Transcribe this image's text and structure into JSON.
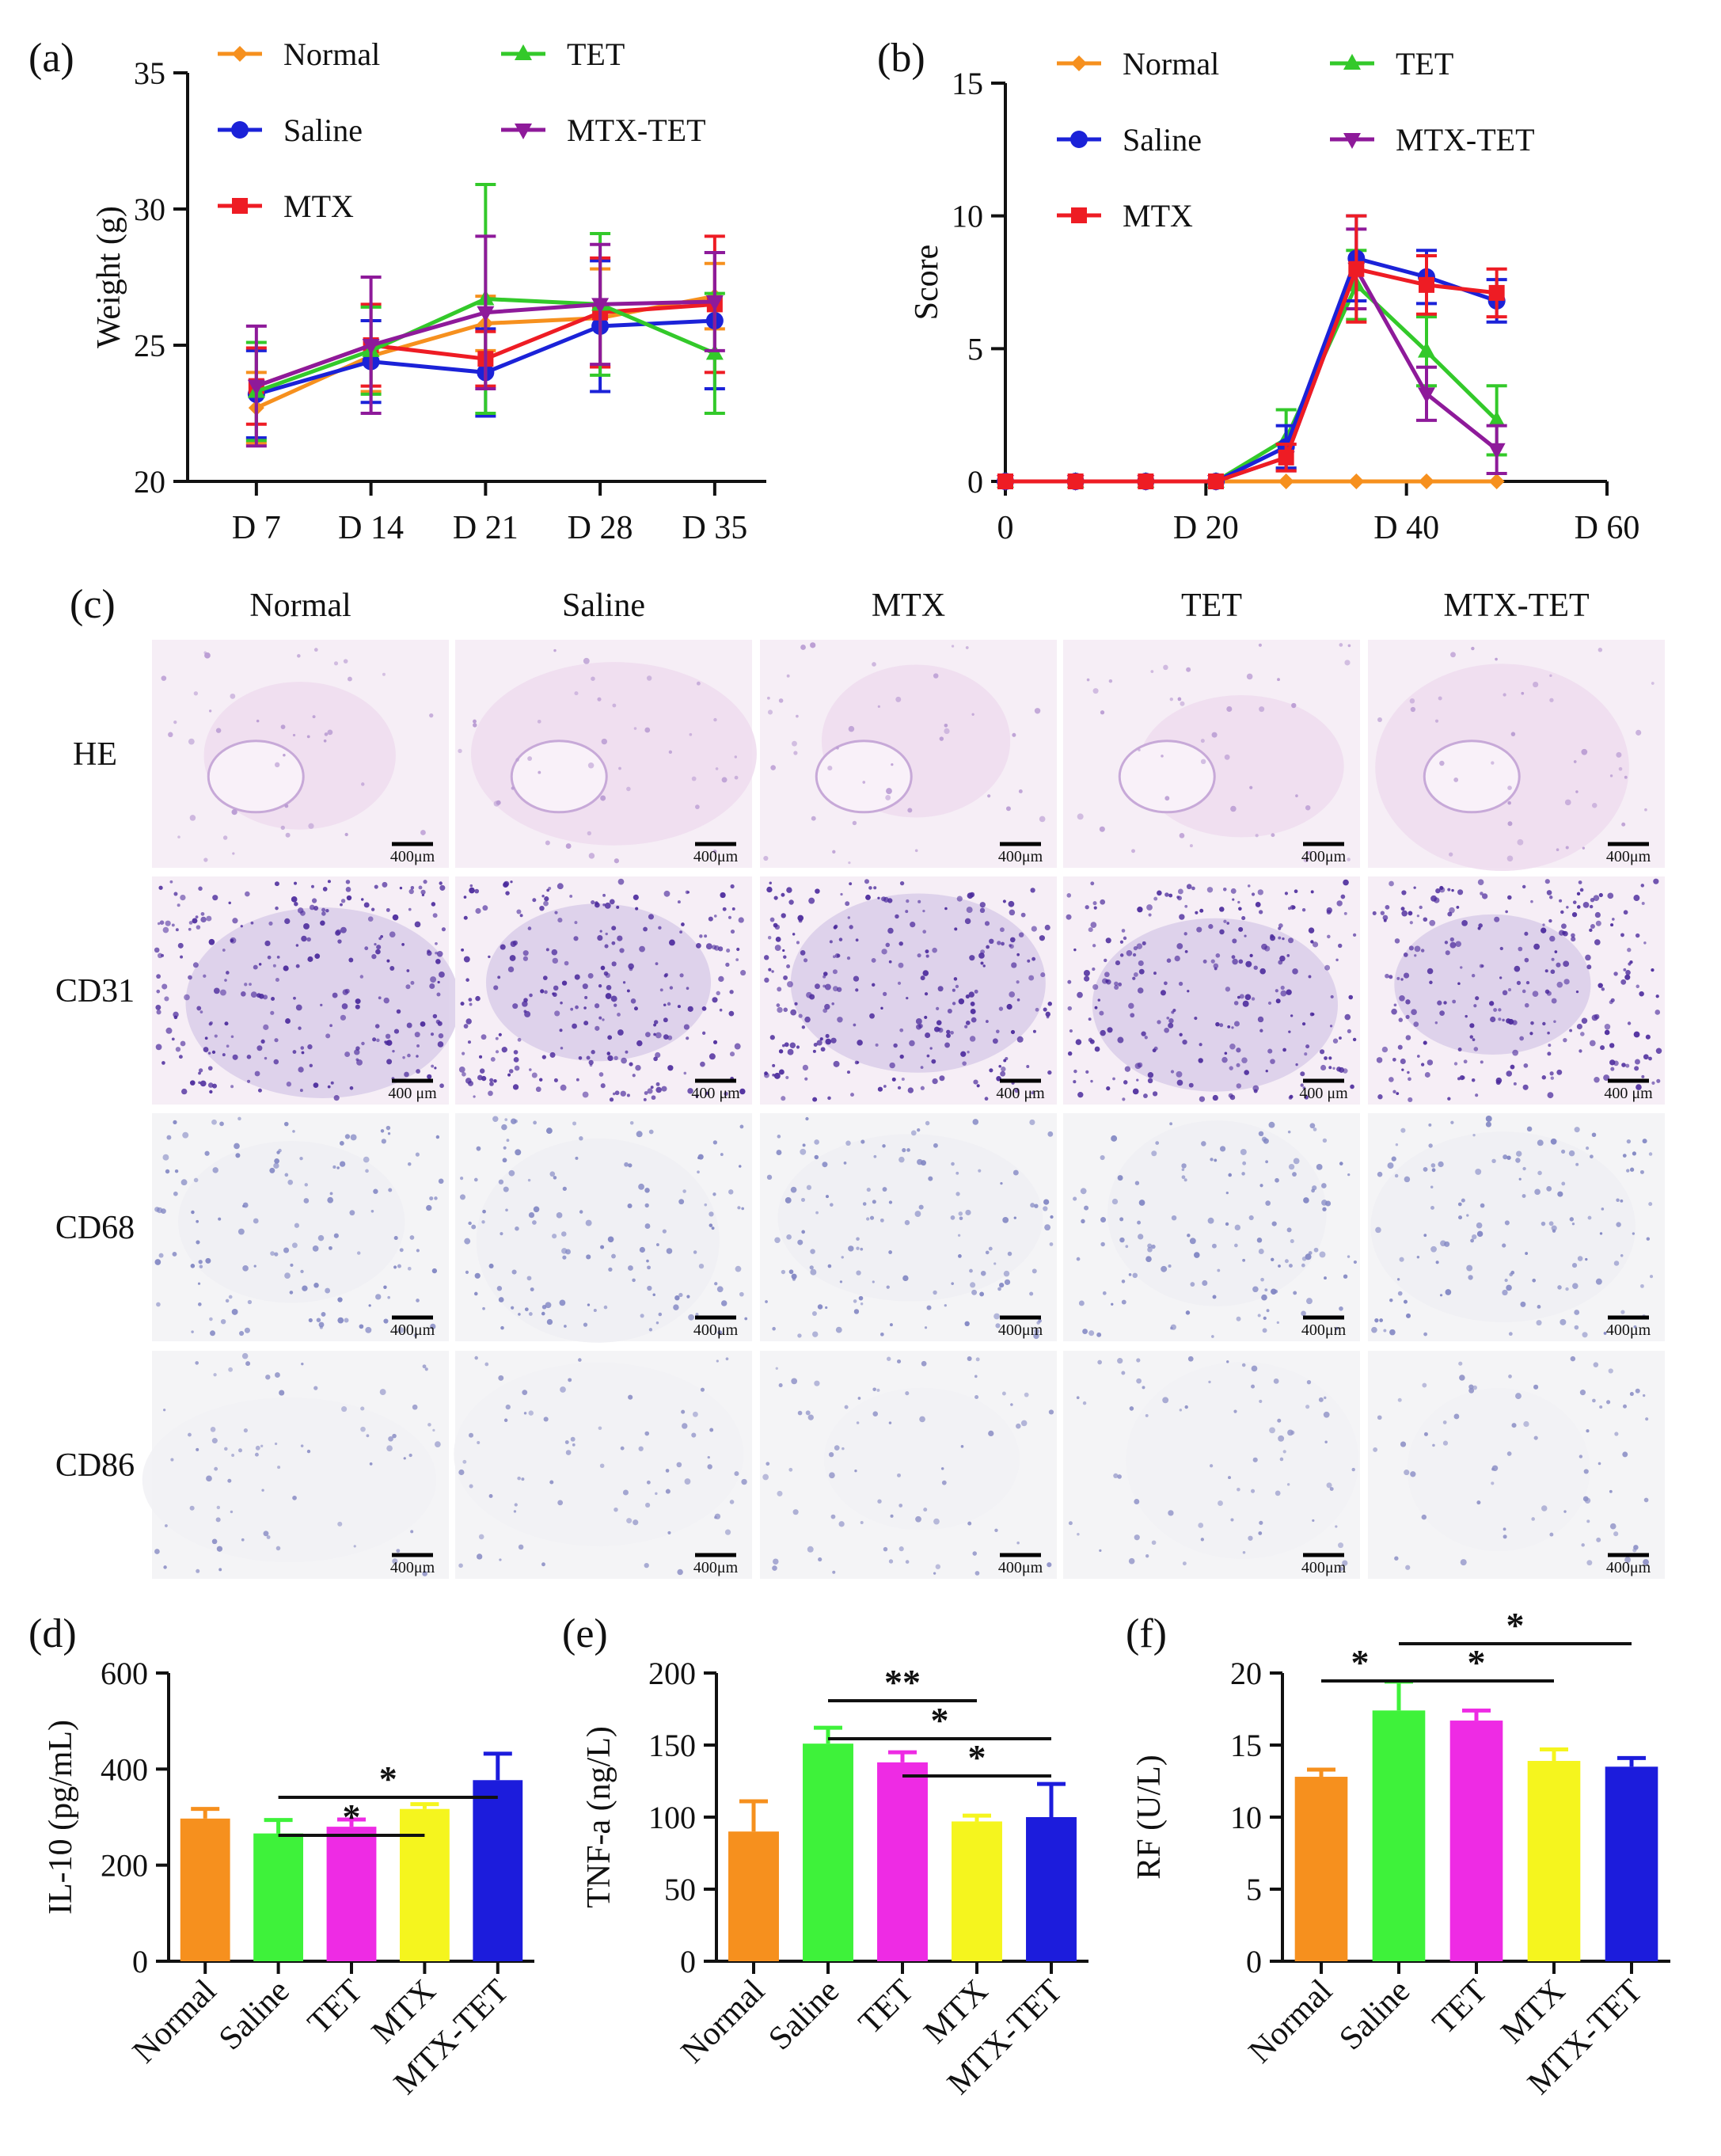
{
  "colors": {
    "Normal": "#f6901e",
    "Saline": "#1b22d8",
    "MTX": "#ee1c24",
    "TET": "#33c92a",
    "MTX-TET": "#8e1a9a",
    "TET_bar": "#ee2be4",
    "MTX_bar": "#f5f51e",
    "MTX-TET_bar": "#1c1cdc",
    "Saline_bar": "#3ef23a"
  },
  "panel_labels": {
    "a": "(a)",
    "b": "(b)",
    "c": "(c)",
    "d": "(d)",
    "e": "(e)",
    "f": "(f)"
  },
  "chart_data": [
    {
      "id": "a",
      "type": "line",
      "title": "",
      "xlabel": "",
      "ylabel": "Weight (g)",
      "categories": [
        "D 7",
        "D 14",
        "D 21",
        "D 28",
        "D 35"
      ],
      "ylim": [
        20,
        35
      ],
      "yticks": [
        20,
        25,
        30,
        35
      ],
      "legend": [
        "Normal",
        "TET",
        "Saline",
        "MTX-TET",
        "MTX"
      ],
      "series": [
        {
          "name": "Normal",
          "values": [
            22.7,
            24.6,
            25.8,
            26.0,
            26.8
          ],
          "err": [
            1.3,
            1.3,
            1.0,
            1.8,
            1.2
          ]
        },
        {
          "name": "Saline",
          "values": [
            23.2,
            24.4,
            24.0,
            25.7,
            25.9
          ],
          "err": [
            1.6,
            1.5,
            1.6,
            2.4,
            2.5
          ]
        },
        {
          "name": "MTX",
          "values": [
            23.5,
            25.0,
            24.5,
            26.2,
            26.5
          ],
          "err": [
            1.4,
            1.5,
            1.0,
            2.0,
            2.5
          ]
        },
        {
          "name": "TET",
          "values": [
            23.3,
            24.8,
            26.7,
            26.5,
            24.7
          ],
          "err": [
            1.8,
            1.6,
            4.2,
            2.6,
            2.2
          ]
        },
        {
          "name": "MTX-TET",
          "values": [
            23.5,
            25.0,
            26.2,
            26.5,
            26.6
          ],
          "err": [
            2.2,
            2.5,
            2.8,
            2.2,
            1.8
          ]
        }
      ]
    },
    {
      "id": "b",
      "type": "line",
      "title": "",
      "xlabel": "",
      "ylabel": "Score",
      "xlim": [
        0,
        60
      ],
      "xticks": [
        0,
        20,
        40,
        60
      ],
      "xticklabels": [
        "0",
        "D 20",
        "D 40",
        "D 60"
      ],
      "ylim": [
        0,
        15
      ],
      "yticks": [
        0,
        5,
        10,
        15
      ],
      "legend": [
        "Normal",
        "TET",
        "Saline",
        "MTX-TET",
        "MTX"
      ],
      "x": [
        0,
        7,
        14,
        21,
        28,
        35,
        42,
        49
      ],
      "series": [
        {
          "name": "Normal",
          "values": [
            0,
            0,
            0,
            0,
            0,
            0,
            0,
            0
          ],
          "err": [
            0,
            0,
            0,
            0,
            0,
            0,
            0,
            0
          ]
        },
        {
          "name": "TET",
          "values": [
            0,
            0,
            0,
            0,
            1.6,
            7.4,
            4.9,
            2.3
          ],
          "err": [
            0,
            0,
            0,
            0,
            1.1,
            1.3,
            1.3,
            1.3
          ]
        },
        {
          "name": "Saline",
          "values": [
            0,
            0,
            0,
            0,
            1.3,
            8.4,
            7.7,
            6.8
          ],
          "err": [
            0,
            0,
            0,
            0,
            0.8,
            1.6,
            1.0,
            0.8
          ]
        },
        {
          "name": "MTX-TET",
          "values": [
            0,
            0,
            0,
            0,
            0.9,
            8.0,
            3.3,
            1.2
          ],
          "err": [
            0,
            0,
            0,
            0,
            0.5,
            1.5,
            1.0,
            0.9
          ]
        },
        {
          "name": "MTX",
          "values": [
            0,
            0,
            0,
            0,
            0.9,
            8.0,
            7.4,
            7.1
          ],
          "err": [
            0,
            0,
            0,
            0,
            0.5,
            2.0,
            1.1,
            0.9
          ]
        }
      ]
    },
    {
      "id": "d",
      "type": "bar",
      "title": "",
      "xlabel": "",
      "ylabel": "IL-10 (pg/mL)",
      "categories": [
        "Normal",
        "Saline",
        "TET",
        "MTX",
        "MTX-TET"
      ],
      "values": [
        297,
        266,
        280,
        317,
        377
      ],
      "err": [
        20,
        28,
        15,
        10,
        55
      ],
      "ylim": [
        0,
        600
      ],
      "yticks": [
        0,
        200,
        400,
        600
      ],
      "significance": [
        {
          "from": "Saline",
          "to": "MTX",
          "label": "*"
        },
        {
          "from": "Saline",
          "to": "MTX-TET",
          "label": "*"
        }
      ]
    },
    {
      "id": "e",
      "type": "bar",
      "title": "",
      "xlabel": "",
      "ylabel": "TNF-a (ng/L)",
      "categories": [
        "Normal",
        "Saline",
        "TET",
        "MTX",
        "MTX-TET"
      ],
      "values": [
        90,
        151,
        138,
        97,
        100
      ],
      "err": [
        21,
        11,
        7,
        4,
        23
      ],
      "ylim": [
        0,
        200
      ],
      "yticks": [
        0,
        50,
        100,
        150,
        200
      ],
      "significance": [
        {
          "from": "Saline",
          "to": "MTX",
          "label": "**"
        },
        {
          "from": "Saline",
          "to": "MTX-TET",
          "label": "*"
        },
        {
          "from": "TET",
          "to": "MTX-TET",
          "label": "*"
        }
      ]
    },
    {
      "id": "f",
      "type": "bar",
      "title": "",
      "xlabel": "",
      "ylabel": "RF (U/L)",
      "categories": [
        "Normal",
        "Saline",
        "TET",
        "MTX",
        "MTX-TET"
      ],
      "values": [
        12.8,
        17.4,
        16.7,
        13.9,
        13.5
      ],
      "err": [
        0.5,
        2.0,
        0.7,
        0.8,
        0.6
      ],
      "ylim": [
        0,
        20
      ],
      "yticks": [
        0,
        5,
        10,
        15,
        20
      ],
      "significance": [
        {
          "from": "Normal",
          "to": "Saline",
          "label": "*"
        },
        {
          "from": "Saline",
          "to": "MTX",
          "label": "*"
        },
        {
          "from": "Saline",
          "to": "MTX-TET",
          "label": "*"
        }
      ]
    }
  ],
  "histology": {
    "columns": [
      "Normal",
      "Saline",
      "MTX",
      "TET",
      "MTX-TET"
    ],
    "rows": [
      {
        "label": "HE",
        "scale": [
          "400μm",
          "400μm",
          "400μm",
          "400μm",
          "400μm"
        ],
        "base": "#efdcef",
        "cell": "#b89ad2",
        "cells": 40
      },
      {
        "label": "CD31",
        "scale": [
          "400 μm",
          "400 μm",
          "400 μm",
          "400 μm",
          "400 μm"
        ],
        "base": "#d9cde9",
        "cell": "#4b2a9c",
        "cells": 260
      },
      {
        "label": "CD68",
        "scale": [
          "400μm",
          "400μm",
          "400μm",
          "400μm",
          "400μm"
        ],
        "base": "#efeff3",
        "cell": "#7f84c2",
        "cells": 130
      },
      {
        "label": "CD86",
        "scale": [
          "400μm",
          "400μm",
          "400μm",
          "400μm",
          "400μm"
        ],
        "base": "#f1f1f5",
        "cell": "#8d90c6",
        "cells": 70
      }
    ]
  }
}
